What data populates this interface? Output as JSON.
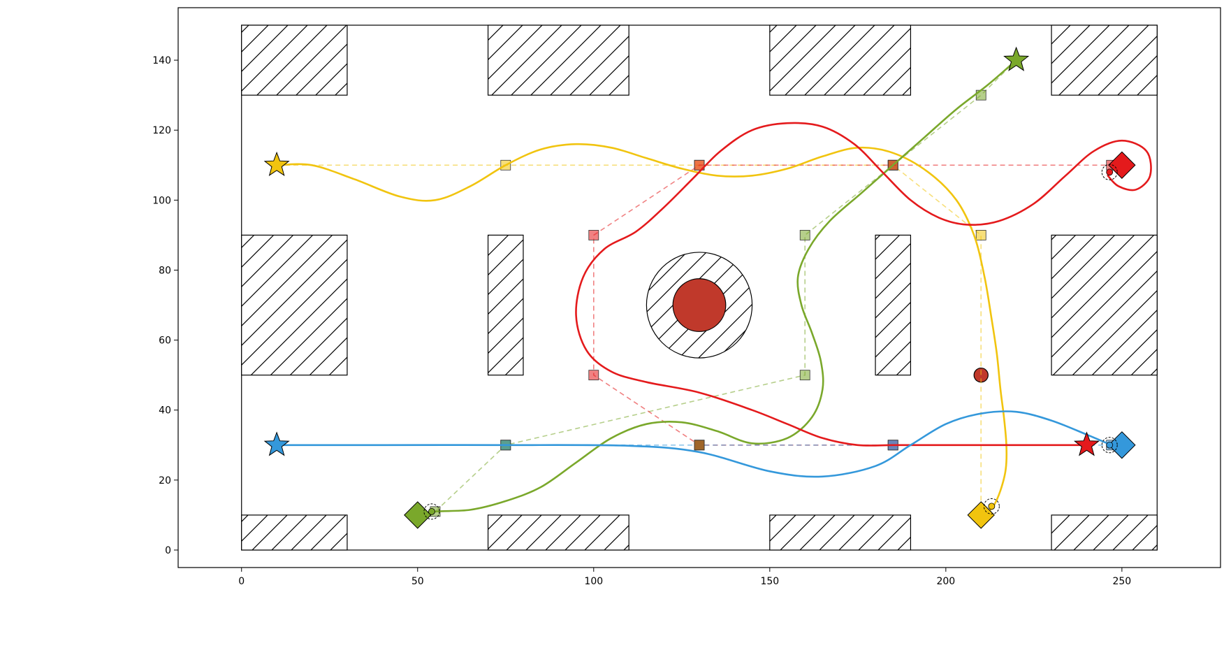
{
  "chart_data": {
    "type": "scatter",
    "title": "",
    "xlabel": "",
    "ylabel": "",
    "xlim": [
      -18,
      278
    ],
    "ylim": [
      -5,
      155
    ],
    "grid": false,
    "xticks": [
      0,
      50,
      100,
      150,
      200,
      250
    ],
    "yticks": [
      0,
      20,
      40,
      60,
      80,
      100,
      120,
      140
    ],
    "arena": {
      "x": [
        0,
        260
      ],
      "y": [
        0,
        150
      ]
    },
    "obstacles": [
      {
        "name": "top-left",
        "x": 0,
        "y": 130,
        "w": 30,
        "h": 20
      },
      {
        "name": "top-2",
        "x": 70,
        "y": 130,
        "w": 40,
        "h": 20
      },
      {
        "name": "top-3",
        "x": 150,
        "y": 130,
        "w": 40,
        "h": 20
      },
      {
        "name": "top-right",
        "x": 230,
        "y": 130,
        "w": 30,
        "h": 20
      },
      {
        "name": "mid-left",
        "x": 0,
        "y": 50,
        "w": 30,
        "h": 40
      },
      {
        "name": "mid-2",
        "x": 70,
        "y": 50,
        "w": 10,
        "h": 40
      },
      {
        "name": "mid-3",
        "x": 180,
        "y": 50,
        "w": 10,
        "h": 40
      },
      {
        "name": "mid-right",
        "x": 230,
        "y": 50,
        "w": 30,
        "h": 40
      },
      {
        "name": "bottom-left",
        "x": 0,
        "y": 0,
        "w": 30,
        "h": 10
      },
      {
        "name": "bottom-2",
        "x": 70,
        "y": 0,
        "w": 40,
        "h": 10
      },
      {
        "name": "bottom-3",
        "x": 150,
        "y": 0,
        "w": 40,
        "h": 10
      },
      {
        "name": "bottom-right",
        "x": 230,
        "y": 0,
        "w": 30,
        "h": 10
      }
    ],
    "hazard_zone": {
      "cx": 130,
      "cy": 70,
      "r": 15
    },
    "hazard_core": {
      "cx": 130,
      "cy": 70,
      "r": 7.5,
      "color": "#c0392b"
    },
    "small_hazard": {
      "cx": 210,
      "cy": 50,
      "r": 2,
      "color": "#c0392b"
    },
    "series": [
      {
        "color": "#f1c40f",
        "waypoints": [
          [
            10,
            110
          ],
          [
            75,
            110
          ],
          [
            130,
            110
          ],
          [
            185,
            110
          ],
          [
            210,
            90
          ],
          [
            210,
            10
          ]
        ],
        "path": [
          [
            10,
            110
          ],
          [
            20,
            110
          ],
          [
            32,
            106
          ],
          [
            45,
            101
          ],
          [
            55,
            100
          ],
          [
            65,
            104
          ],
          [
            75,
            110
          ],
          [
            85,
            114.5
          ],
          [
            95,
            116
          ],
          [
            105,
            115
          ],
          [
            115,
            112
          ],
          [
            125,
            109
          ],
          [
            135,
            107
          ],
          [
            145,
            107
          ],
          [
            155,
            109
          ],
          [
            165,
            112.5
          ],
          [
            175,
            115
          ],
          [
            185,
            113.5
          ],
          [
            195,
            108
          ],
          [
            203,
            100
          ],
          [
            208,
            90
          ],
          [
            211,
            78
          ],
          [
            213,
            66
          ],
          [
            214.5,
            56
          ],
          [
            215.5,
            46
          ],
          [
            216.5,
            38
          ],
          [
            217.2,
            30
          ],
          [
            217,
            23
          ],
          [
            215.5,
            17
          ],
          [
            213.5,
            12.5
          ],
          [
            211,
            10
          ]
        ],
        "start": {
          "x": 10,
          "y": 110,
          "marker": "star"
        },
        "goal": {
          "x": 210,
          "y": 10,
          "marker": "diamond"
        },
        "agent": {
          "x": 213,
          "y": 12.5
        }
      },
      {
        "color": "#7aa82b",
        "waypoints": [
          [
            220,
            140
          ],
          [
            210,
            130
          ],
          [
            185,
            110
          ],
          [
            160,
            90
          ],
          [
            160,
            50
          ],
          [
            75,
            30
          ],
          [
            55,
            11
          ]
        ],
        "path": [
          [
            220,
            140
          ],
          [
            212,
            133
          ],
          [
            203,
            126
          ],
          [
            194,
            118
          ],
          [
            185,
            110
          ],
          [
            176,
            102
          ],
          [
            167,
            94
          ],
          [
            161,
            86
          ],
          [
            158,
            78
          ],
          [
            159,
            70
          ],
          [
            162,
            62
          ],
          [
            164.5,
            54
          ],
          [
            165,
            46
          ],
          [
            162,
            38
          ],
          [
            155,
            32
          ],
          [
            145,
            30.5
          ],
          [
            135,
            34
          ],
          [
            125,
            36.5
          ],
          [
            115,
            36
          ],
          [
            105,
            32
          ],
          [
            95,
            25
          ],
          [
            85,
            18
          ],
          [
            75,
            14
          ],
          [
            65,
            11.5
          ],
          [
            55,
            11
          ],
          [
            50,
            10
          ]
        ],
        "start": {
          "x": 220,
          "y": 140,
          "marker": "star"
        },
        "goal": {
          "x": 50,
          "y": 10,
          "marker": "diamond"
        },
        "agent": {
          "x": 54,
          "y": 11
        }
      },
      {
        "color": "#e41a1c",
        "waypoints": [
          [
            240,
            30
          ],
          [
            185,
            30
          ],
          [
            130,
            30
          ],
          [
            100,
            50
          ],
          [
            100,
            90
          ],
          [
            130,
            110
          ],
          [
            185,
            110
          ],
          [
            247,
            110
          ]
        ],
        "path": [
          [
            240,
            30
          ],
          [
            225,
            30
          ],
          [
            210,
            30
          ],
          [
            195,
            30
          ],
          [
            185,
            30
          ],
          [
            175,
            30
          ],
          [
            165,
            32
          ],
          [
            155,
            36
          ],
          [
            145,
            40
          ],
          [
            130,
            45
          ],
          [
            115,
            48
          ],
          [
            105,
            51
          ],
          [
            98,
            57
          ],
          [
            95,
            67
          ],
          [
            97,
            78
          ],
          [
            103,
            86
          ],
          [
            112,
            91
          ],
          [
            120,
            98
          ],
          [
            128,
            106
          ],
          [
            136,
            114
          ],
          [
            145,
            120
          ],
          [
            155,
            122
          ],
          [
            165,
            121
          ],
          [
            174,
            116
          ],
          [
            182,
            108
          ],
          [
            190,
            100
          ],
          [
            198,
            95
          ],
          [
            206,
            93
          ],
          [
            215,
            94
          ],
          [
            225,
            99
          ],
          [
            234,
            107
          ],
          [
            242,
            114
          ],
          [
            250,
            117
          ],
          [
            257,
            114
          ],
          [
            258,
            107
          ],
          [
            254,
            103
          ],
          [
            249,
            104
          ],
          [
            246,
            107
          ]
        ],
        "start": {
          "x": 240,
          "y": 30,
          "marker": "star"
        },
        "goal": {
          "x": 250,
          "y": 110,
          "marker": "diamond"
        },
        "agent": {
          "x": 246.5,
          "y": 108
        }
      },
      {
        "color": "#3498db",
        "waypoints": [
          [
            10,
            30
          ],
          [
            75,
            30
          ],
          [
            130,
            30
          ],
          [
            185,
            30
          ],
          [
            247,
            30
          ]
        ],
        "path": [
          [
            10,
            30
          ],
          [
            40,
            30
          ],
          [
            75,
            30
          ],
          [
            110,
            29.8
          ],
          [
            130,
            28
          ],
          [
            150,
            22.5
          ],
          [
            165,
            21
          ],
          [
            180,
            24
          ],
          [
            190,
            30
          ],
          [
            200,
            36
          ],
          [
            210,
            39
          ],
          [
            220,
            39.5
          ],
          [
            230,
            37
          ],
          [
            240,
            33
          ],
          [
            247,
            30
          ]
        ],
        "start": {
          "x": 10,
          "y": 30,
          "marker": "star"
        },
        "goal": {
          "x": 250,
          "y": 30,
          "marker": "diamond"
        },
        "agent": {
          "x": 246.5,
          "y": 30
        }
      }
    ],
    "shared_waypoints": [
      {
        "x": 75,
        "y": 30,
        "color": "#5a9e8f"
      },
      {
        "x": 130,
        "y": 30,
        "color": "#a0662a"
      },
      {
        "x": 185,
        "y": 30,
        "color": "#6b84b8"
      }
    ]
  }
}
